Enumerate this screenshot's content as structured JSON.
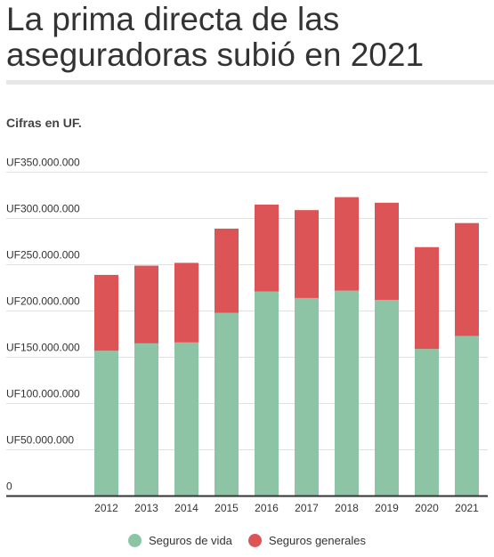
{
  "title": "La prima directa de las aseguradoras subió en 2021",
  "subtitle": "Cifras en UF.",
  "colors": {
    "vida": "#8cc4a5",
    "generales": "#dd5457",
    "grid": "#e0e0e0",
    "axis": "#333333"
  },
  "chart_data": {
    "type": "bar",
    "stacked": true,
    "categories": [
      "2012",
      "2013",
      "2014",
      "2015",
      "2016",
      "2017",
      "2018",
      "2019",
      "2020",
      "2021"
    ],
    "series": [
      {
        "name": "Seguros de vida",
        "values": [
          157000000,
          165000000,
          166000000,
          198000000,
          221000000,
          214000000,
          222000000,
          212000000,
          159000000,
          173000000
        ]
      },
      {
        "name": "Seguros generales",
        "values": [
          82000000,
          84000000,
          86000000,
          91000000,
          94000000,
          95000000,
          101000000,
          105000000,
          110000000,
          122000000
        ]
      }
    ],
    "ylim": [
      0,
      350000000
    ],
    "yticks": [
      "0",
      "UF50.000.000",
      "UF100.000.000",
      "UF150.000.000",
      "UF200.000.000",
      "UF250.000.000",
      "UF300.000.000",
      "UF350.000.000"
    ],
    "grid": true,
    "legend_position": "bottom"
  }
}
